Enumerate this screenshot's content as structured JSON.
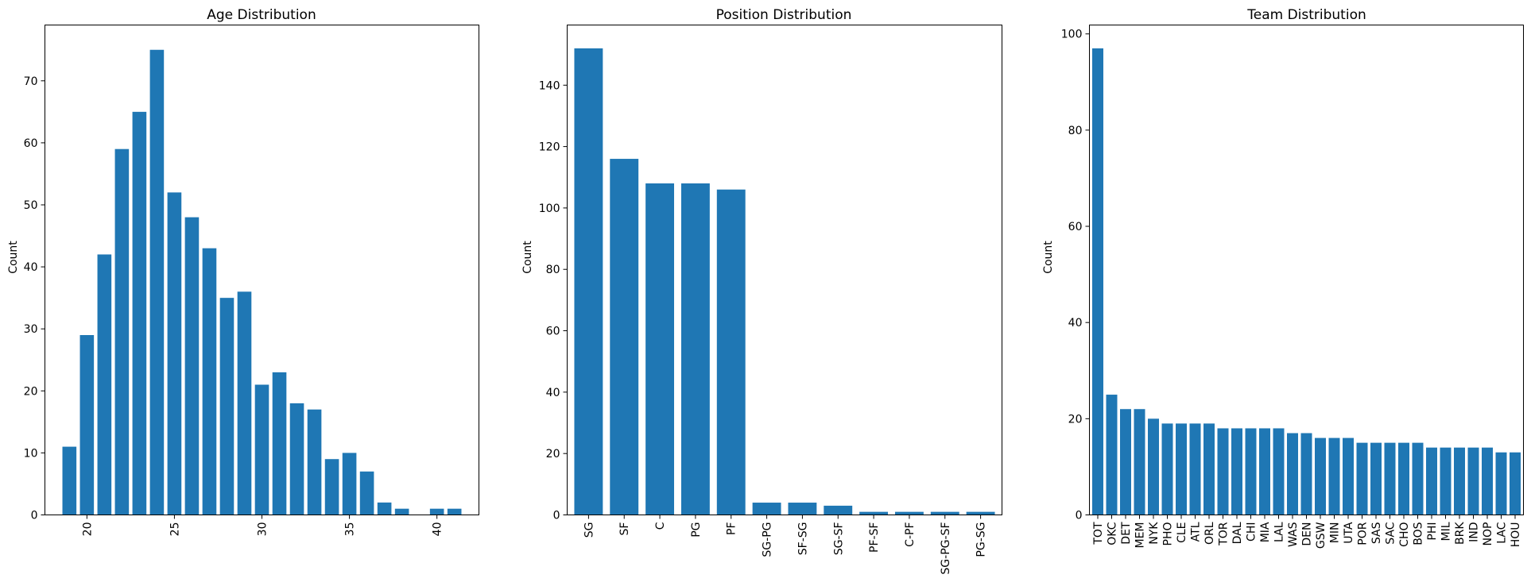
{
  "chart_data": [
    {
      "type": "bar",
      "title": "Age Distribution",
      "xlabel": "",
      "ylabel": "Count",
      "x": [
        19,
        20,
        21,
        22,
        23,
        24,
        25,
        26,
        27,
        28,
        29,
        30,
        31,
        32,
        33,
        34,
        35,
        36,
        37,
        38,
        39,
        40,
        41
      ],
      "values": [
        11,
        29,
        42,
        59,
        65,
        75,
        52,
        48,
        43,
        35,
        36,
        21,
        23,
        18,
        17,
        9,
        10,
        7,
        2,
        1,
        0,
        1,
        1
      ],
      "xlim": [
        17.6,
        42.4
      ],
      "ylim": [
        0,
        79
      ],
      "xticks": [
        "20",
        "25",
        "30",
        "35",
        "40"
      ],
      "xtick_values": [
        20,
        25,
        30,
        35,
        40
      ],
      "yticks": [
        0,
        10,
        20,
        30,
        40,
        50,
        60,
        70
      ],
      "grid": false,
      "color": "#1f77b4"
    },
    {
      "type": "bar",
      "title": "Position Distribution",
      "xlabel": "",
      "ylabel": "Count",
      "categories": [
        "SG",
        "SF",
        "C",
        "PG",
        "PF",
        "SG-PG",
        "SF-SG",
        "SG-SF",
        "PF-SF",
        "C-PF",
        "SG-PG-SF",
        "PG-SG"
      ],
      "values": [
        152,
        116,
        108,
        108,
        106,
        4,
        4,
        3,
        1,
        1,
        1,
        1
      ],
      "ylim": [
        0,
        159.6
      ],
      "yticks": [
        0,
        20,
        40,
        60,
        80,
        100,
        120,
        140
      ],
      "grid": false,
      "color": "#1f77b4"
    },
    {
      "type": "bar",
      "title": "Team Distribution",
      "xlabel": "",
      "ylabel": "Count",
      "categories": [
        "TOT",
        "OKC",
        "DET",
        "MEM",
        "NYK",
        "PHO",
        "CLE",
        "ATL",
        "ORL",
        "TOR",
        "DAL",
        "CHI",
        "MIA",
        "LAL",
        "WAS",
        "DEN",
        "GSW",
        "MIN",
        "UTA",
        "POR",
        "SAS",
        "SAC",
        "CHO",
        "BOS",
        "PHI",
        "MIL",
        "BRK",
        "IND",
        "NOP",
        "LAC",
        "HOU"
      ],
      "values": [
        97,
        25,
        22,
        22,
        20,
        19,
        19,
        19,
        19,
        18,
        18,
        18,
        18,
        18,
        17,
        17,
        16,
        16,
        16,
        15,
        15,
        15,
        15,
        15,
        14,
        14,
        14,
        14,
        14,
        13,
        13
      ],
      "ylim": [
        0,
        101.85
      ],
      "yticks": [
        0,
        20,
        40,
        60,
        80,
        100
      ],
      "grid": false,
      "color": "#1f77b4"
    }
  ]
}
